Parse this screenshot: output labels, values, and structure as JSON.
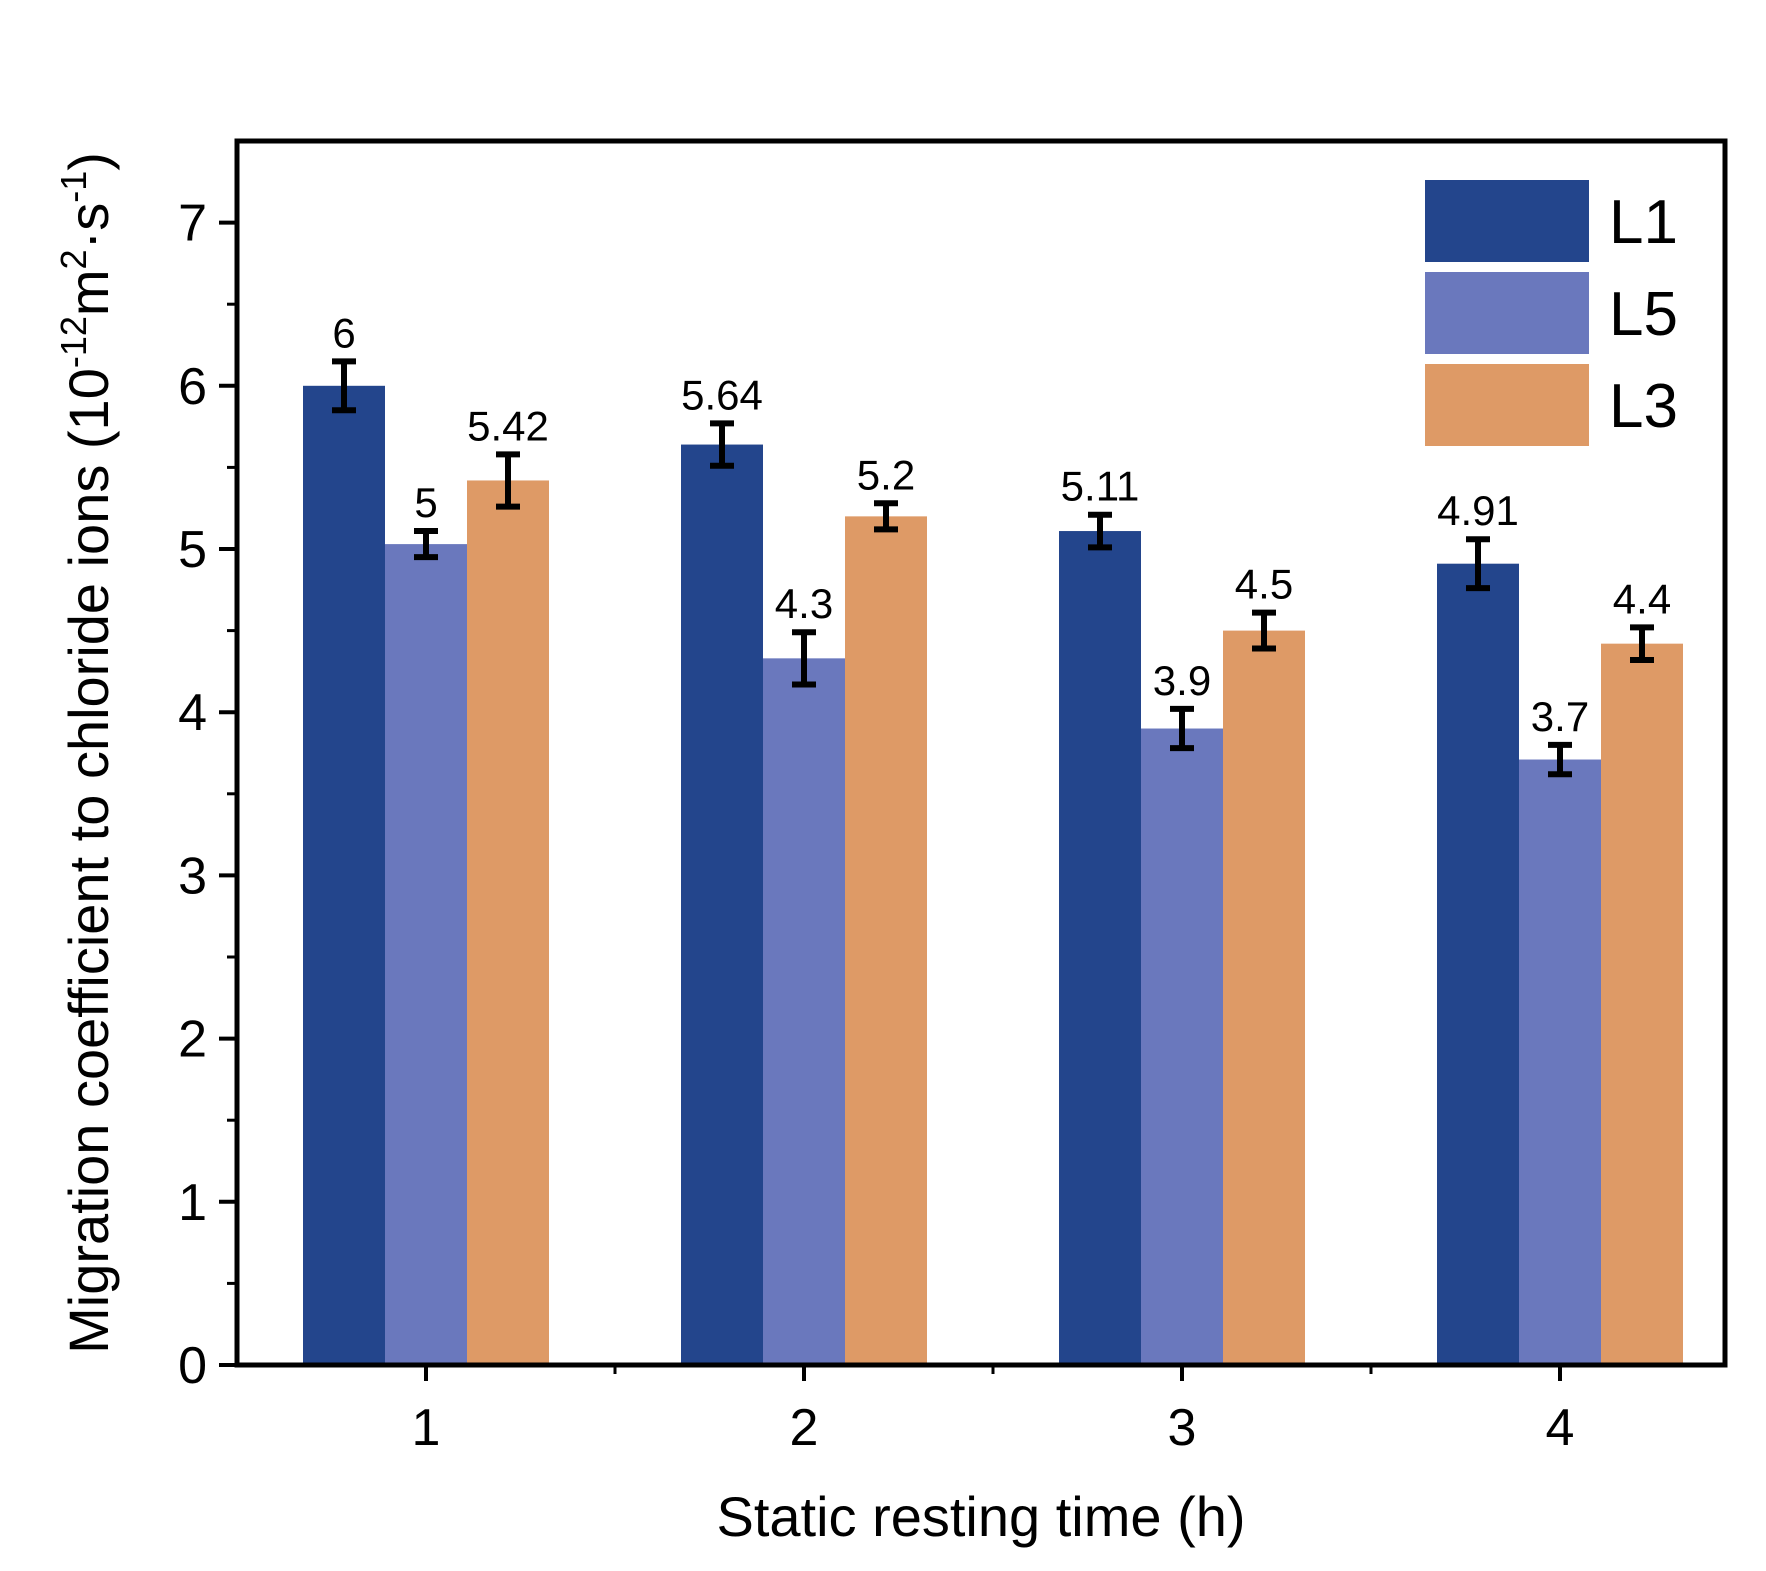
{
  "chart_data": {
    "type": "bar",
    "xlabel": "Static resting time (h)",
    "ylabel": {
      "base": "Migration coefficient to chloride ions (10",
      "exp1": "-12",
      "mid": "m",
      "exp2": "2",
      "mid2": "·s",
      "exp3": "-1",
      "end": ")"
    },
    "ylim": [
      0,
      7.5
    ],
    "yticks": [
      "0",
      "1",
      "2",
      "3",
      "4",
      "5",
      "6",
      "7"
    ],
    "categories": [
      "1",
      "2",
      "3",
      "4"
    ],
    "series": [
      {
        "name": "L1",
        "color": "#23458c",
        "values": [
          6.0,
          5.64,
          5.11,
          4.91
        ],
        "errors": [
          0.15,
          0.13,
          0.1,
          0.15
        ],
        "labels": [
          "6",
          "5.64",
          "5.11",
          "4.91"
        ]
      },
      {
        "name": "L5",
        "color": "#6a78bd",
        "values": [
          5.03,
          4.33,
          3.9,
          3.71
        ],
        "errors": [
          0.08,
          0.16,
          0.12,
          0.09
        ],
        "labels": [
          "5",
          "4.3",
          "3.9",
          "3.7"
        ]
      },
      {
        "name": "L3",
        "color": "#de9a66",
        "values": [
          5.42,
          5.2,
          4.5,
          4.42
        ],
        "errors": [
          0.16,
          0.08,
          0.11,
          0.1
        ],
        "labels": [
          "5.42",
          "5.2",
          "4.5",
          "4.4"
        ]
      }
    ],
    "legend_position": "top-right",
    "grid": false
  }
}
